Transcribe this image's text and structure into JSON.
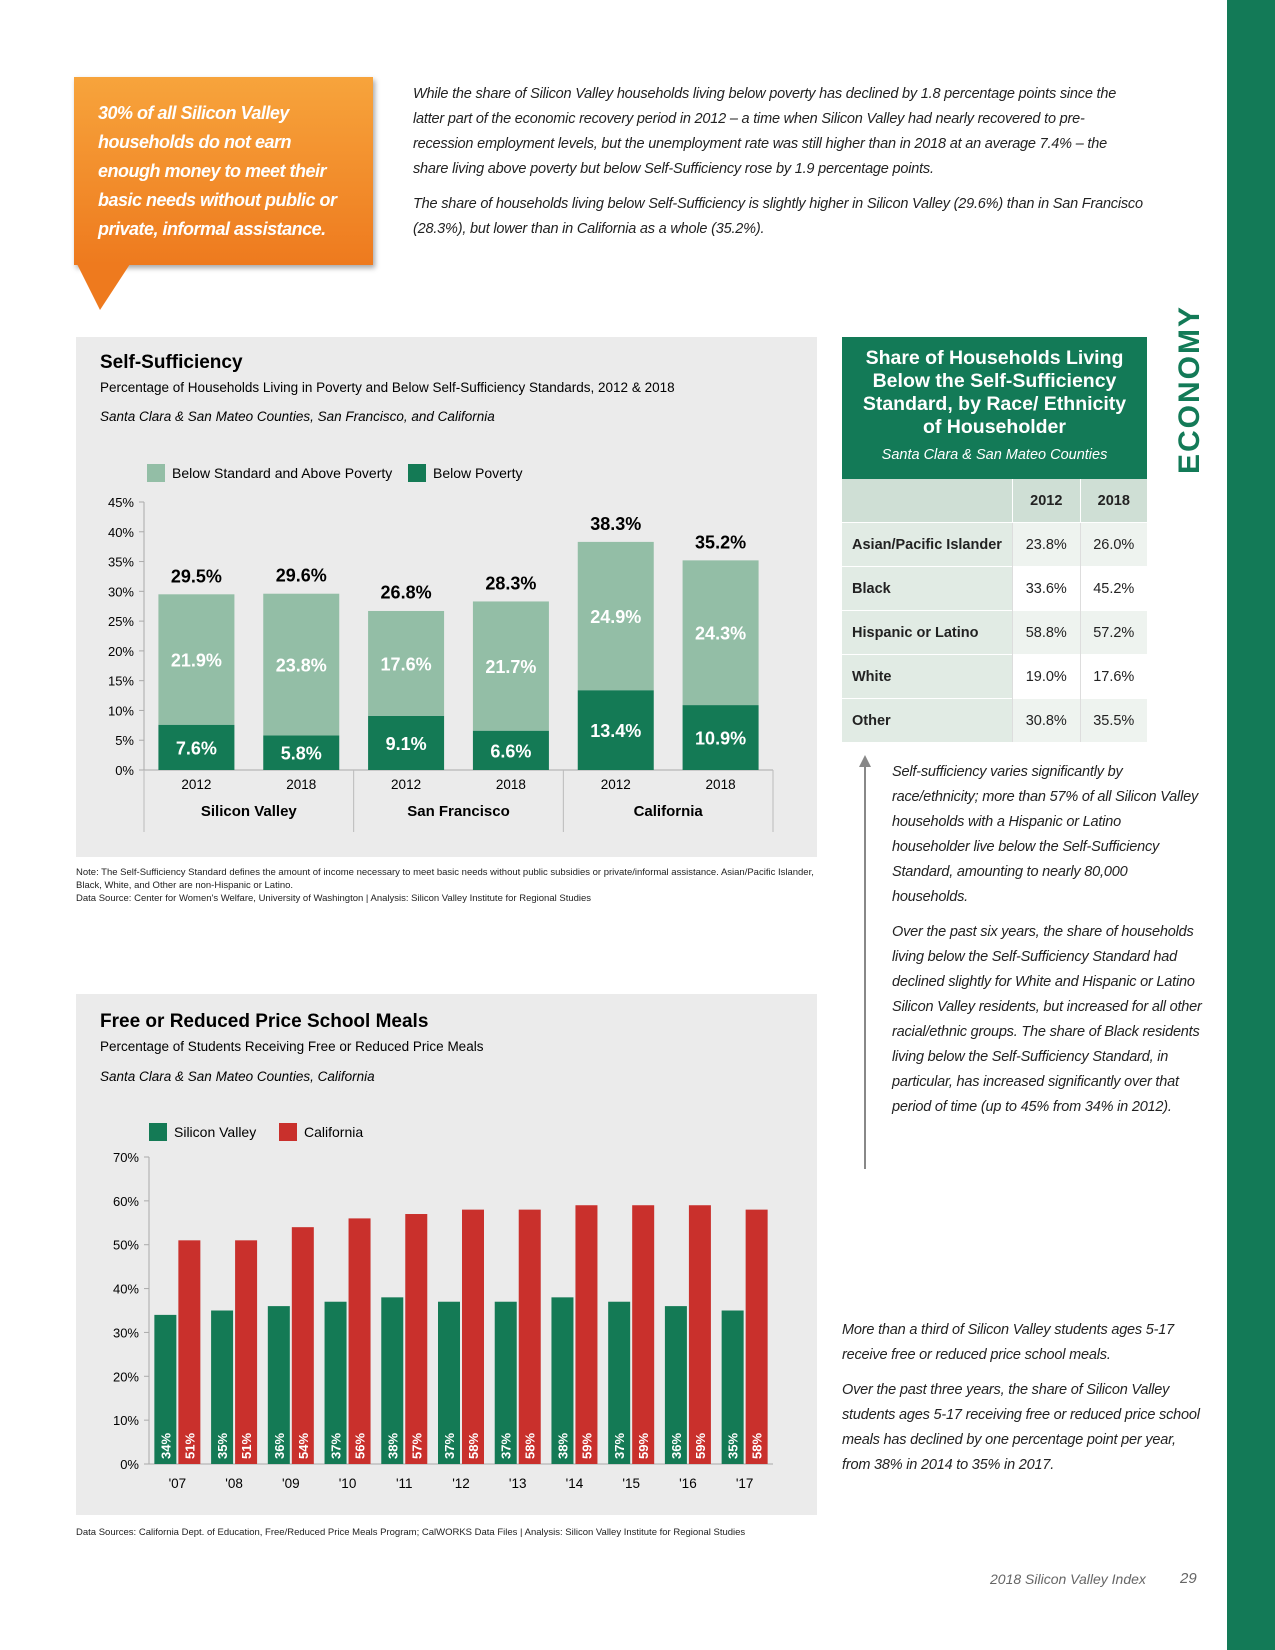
{
  "callout": "30% of all Silicon Valley households do not earn enough money to meet their basic needs without public or private, informal assistance.",
  "intro": [
    "While the share of Silicon Valley households living below poverty has declined by 1.8 percentage points since the latter part of the economic recovery period in 2012 – a time when Silicon Valley had nearly recovered to pre-recession employment levels, but the unemployment rate was still higher than in 2018 at an average 7.4% – the share living above poverty but below Self-Sufficiency rose by 1.9 percentage points.",
    "The share of households living below Self-Sufficiency is slightly higher in Silicon Valley (29.6%) than in San Francisco (28.3%), but lower than in California as a whole (35.2%)."
  ],
  "section": "ECONOMY",
  "chart_data": [
    {
      "type": "bar",
      "stacked": true,
      "title": "Self-Sufficiency",
      "subtitle": "Percentage of Households Living in Poverty and Below Self-Sufficiency Standards, 2012 & 2018",
      "geography": "Santa Clara & San Mateo Counties, San Francisco, and California",
      "categories": [
        "2012",
        "2018",
        "2012",
        "2018",
        "2012",
        "2018"
      ],
      "groups": [
        "Silicon Valley",
        "San Francisco",
        "California"
      ],
      "series": [
        {
          "name": "Below Standard and Above Poverty",
          "color": "#93bea6",
          "values": [
            21.9,
            23.8,
            17.6,
            21.7,
            24.9,
            24.3
          ],
          "value_labels": [
            "21.9%",
            "23.8%",
            "17.6%",
            "21.7%",
            "24.9%",
            "24.3%"
          ]
        },
        {
          "name": "Below Poverty",
          "color": "#147a55",
          "values": [
            7.6,
            5.8,
            9.1,
            6.6,
            13.4,
            10.9
          ],
          "value_labels": [
            "7.6%",
            "5.8%",
            "9.1%",
            "6.6%",
            "13.4%",
            "10.9%"
          ]
        }
      ],
      "totals": [
        29.5,
        29.6,
        26.8,
        28.3,
        38.3,
        35.2
      ],
      "total_labels": [
        "29.5%",
        "29.6%",
        "26.8%",
        "28.3%",
        "38.3%",
        "35.2%"
      ],
      "ylim": [
        0,
        45
      ],
      "yticks": [
        {
          "value": 0,
          "label": "0%"
        },
        {
          "value": 5,
          "label": "5%"
        },
        {
          "value": 10,
          "label": "10%"
        },
        {
          "value": 15,
          "label": "15%"
        },
        {
          "value": 20,
          "label": "20%"
        },
        {
          "value": 25,
          "label": "25%"
        },
        {
          "value": 30,
          "label": "30%"
        },
        {
          "value": 35,
          "label": "35%"
        },
        {
          "value": 40,
          "label": "40%"
        },
        {
          "value": 45,
          "label": "45%"
        }
      ],
      "grid": false
    },
    {
      "type": "bar",
      "stacked": false,
      "title": "Free or Reduced Price School Meals",
      "subtitle": "Percentage of Students Receiving Free or Reduced Price Meals",
      "geography": "Santa Clara & San Mateo Counties, California",
      "categories": [
        "'07",
        "'08",
        "'09",
        "'10",
        "'11",
        "'12",
        "'13",
        "'14",
        "'15",
        "'16",
        "'17"
      ],
      "series": [
        {
          "name": "Silicon Valley",
          "color": "#147a55",
          "values": [
            34,
            35,
            36,
            37,
            38,
            37,
            37,
            38,
            37,
            36,
            35
          ],
          "value_labels": [
            "34%",
            "35%",
            "36%",
            "37%",
            "38%",
            "37%",
            "37%",
            "38%",
            "37%",
            "36%",
            "35%"
          ]
        },
        {
          "name": "California",
          "color": "#c9302c",
          "values": [
            51,
            51,
            54,
            56,
            57,
            58,
            58,
            59,
            59,
            59,
            58
          ],
          "value_labels": [
            "51%",
            "51%",
            "54%",
            "56%",
            "57%",
            "58%",
            "58%",
            "59%",
            "59%",
            "59%",
            "58%"
          ]
        }
      ],
      "ylim": [
        0,
        70
      ],
      "yticks": [
        {
          "value": 0,
          "label": "0%"
        },
        {
          "value": 10,
          "label": "10%"
        },
        {
          "value": 20,
          "label": "20%"
        },
        {
          "value": 30,
          "label": "30%"
        },
        {
          "value": 40,
          "label": "40%"
        },
        {
          "value": 50,
          "label": "50%"
        },
        {
          "value": 60,
          "label": "60%"
        },
        {
          "value": 70,
          "label": "70%"
        }
      ],
      "grid": false
    }
  ],
  "chart_notes": [
    "Note: The Self-Sufficiency Standard defines the amount of income necessary to meet basic needs without public subsidies or private/informal assistance. Asian/Pacific Islander, Black, White, and Other are non-Hispanic or Latino.",
    "Data Source: Center for Women's Welfare, University of Washington | Analysis: Silicon Valley Institute for Regional Studies"
  ],
  "table": {
    "title": "Share of Households Living Below the Self-Sufficiency Standard, by Race/ Ethnicity of Householder",
    "subtitle": "Santa Clara & San Mateo Counties",
    "columns": [
      "2012",
      "2018"
    ],
    "rows": [
      [
        "Asian/Pacific Islander",
        "23.8%",
        "26.0%"
      ],
      [
        "Black",
        "33.6%",
        "45.2%"
      ],
      [
        "Hispanic or Latino",
        "58.8%",
        "57.2%"
      ],
      [
        "White",
        "19.0%",
        "17.6%"
      ],
      [
        "Other",
        "30.8%",
        "35.5%"
      ]
    ]
  },
  "sidebar": [
    "Self-sufficiency varies significantly by race/ethnicity; more than 57% of all Silicon Valley households with a Hispanic or Latino householder live below the Self-Sufficiency Standard, amounting to nearly 80,000 households.",
    "Over the past six years, the share of households living below the Self-Sufficiency Standard had declined slightly for White and Hispanic or Latino Silicon Valley residents, but increased for all other racial/ethnic groups. The share of Black residents living below the Self-Sufficiency Standard, in particular, has increased significantly over that period of time (up to 45% from 34% in 2012)."
  ],
  "meals_sources": "Data Sources: California Dept. of Education, Free/Reduced Price Meals Program; CalWORKS Data Files | Analysis: Silicon Valley Institute for Regional Studies",
  "meals_text": [
    "More than a third of Silicon Valley students ages 5-17 receive free or reduced price school meals.",
    "Over the past three years, the share of Silicon Valley students ages 5-17 receiving free or reduced price school meals has declined by one percentage point per year, from 38% in 2014 to 35% in 2017."
  ],
  "footer": {
    "title": "2018 Silicon Valley Index",
    "page": "29"
  }
}
